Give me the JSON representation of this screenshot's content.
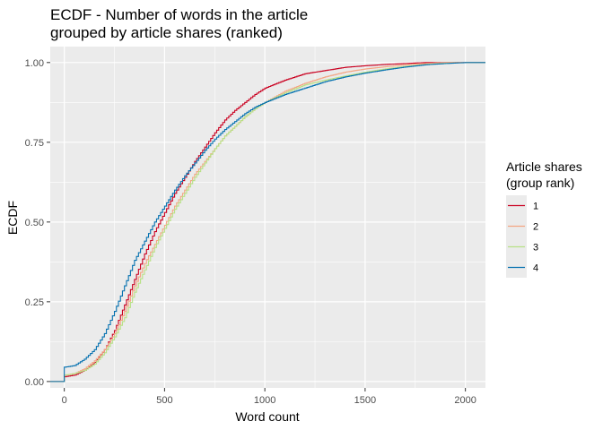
{
  "chart_data": {
    "type": "line",
    "subtype": "ecdf-step",
    "title_lines": [
      "ECDF - Number of words in the article",
      "grouped by article shares (ranked)"
    ],
    "xlabel": "Word count",
    "ylabel": "ECDF",
    "xlim": [
      -70,
      2100
    ],
    "ylim": [
      -0.02,
      1.05
    ],
    "x_ticks": [
      0,
      500,
      1000,
      1500,
      2000
    ],
    "x_tick_labels": [
      "0",
      "500",
      "1000",
      "1500",
      "2000"
    ],
    "y_ticks": [
      0,
      0.25,
      0.5,
      0.75,
      1.0
    ],
    "y_tick_labels": [
      "0.00",
      "0.25",
      "0.50",
      "0.75",
      "1.00"
    ],
    "grid": true,
    "panel_background": "#ebebeb",
    "grid_color": "#ffffff",
    "legend": {
      "title_lines": [
        "Article shares",
        "(group rank)"
      ],
      "position": "right"
    },
    "series": [
      {
        "name": "1",
        "color": "#ca0020",
        "points": [
          [
            -70,
            0
          ],
          [
            0,
            0
          ],
          [
            0,
            0.015
          ],
          [
            50,
            0.02
          ],
          [
            100,
            0.035
          ],
          [
            150,
            0.06
          ],
          [
            200,
            0.1
          ],
          [
            250,
            0.16
          ],
          [
            300,
            0.24
          ],
          [
            350,
            0.32
          ],
          [
            400,
            0.4
          ],
          [
            450,
            0.47
          ],
          [
            500,
            0.53
          ],
          [
            550,
            0.59
          ],
          [
            600,
            0.64
          ],
          [
            650,
            0.69
          ],
          [
            700,
            0.735
          ],
          [
            750,
            0.78
          ],
          [
            800,
            0.82
          ],
          [
            850,
            0.85
          ],
          [
            900,
            0.875
          ],
          [
            950,
            0.9
          ],
          [
            1000,
            0.92
          ],
          [
            1100,
            0.945
          ],
          [
            1200,
            0.965
          ],
          [
            1300,
            0.975
          ],
          [
            1400,
            0.985
          ],
          [
            1500,
            0.99
          ],
          [
            1600,
            0.994
          ],
          [
            1700,
            0.997
          ],
          [
            1800,
            1.0
          ],
          [
            2100,
            1.0
          ]
        ]
      },
      {
        "name": "2",
        "color": "#f4a582",
        "points": [
          [
            -70,
            0
          ],
          [
            0,
            0
          ],
          [
            0,
            0.02
          ],
          [
            50,
            0.025
          ],
          [
            100,
            0.04
          ],
          [
            150,
            0.065
          ],
          [
            200,
            0.1
          ],
          [
            250,
            0.15
          ],
          [
            300,
            0.22
          ],
          [
            350,
            0.3
          ],
          [
            400,
            0.37
          ],
          [
            450,
            0.43
          ],
          [
            500,
            0.49
          ],
          [
            550,
            0.55
          ],
          [
            600,
            0.6
          ],
          [
            650,
            0.65
          ],
          [
            700,
            0.69
          ],
          [
            750,
            0.73
          ],
          [
            800,
            0.77
          ],
          [
            850,
            0.8
          ],
          [
            900,
            0.83
          ],
          [
            950,
            0.855
          ],
          [
            1000,
            0.875
          ],
          [
            1100,
            0.91
          ],
          [
            1200,
            0.935
          ],
          [
            1300,
            0.955
          ],
          [
            1400,
            0.97
          ],
          [
            1500,
            0.98
          ],
          [
            1600,
            0.987
          ],
          [
            1700,
            0.993
          ],
          [
            1800,
            0.997
          ],
          [
            1900,
            1.0
          ],
          [
            2100,
            1.0
          ]
        ]
      },
      {
        "name": "3",
        "color": "#b8e186",
        "points": [
          [
            -70,
            0
          ],
          [
            0,
            0
          ],
          [
            0,
            0.02
          ],
          [
            50,
            0.025
          ],
          [
            100,
            0.035
          ],
          [
            150,
            0.055
          ],
          [
            200,
            0.09
          ],
          [
            250,
            0.14
          ],
          [
            300,
            0.2
          ],
          [
            350,
            0.28
          ],
          [
            400,
            0.35
          ],
          [
            450,
            0.42
          ],
          [
            500,
            0.48
          ],
          [
            550,
            0.54
          ],
          [
            600,
            0.59
          ],
          [
            650,
            0.64
          ],
          [
            700,
            0.685
          ],
          [
            750,
            0.73
          ],
          [
            800,
            0.77
          ],
          [
            850,
            0.8
          ],
          [
            900,
            0.83
          ],
          [
            950,
            0.855
          ],
          [
            1000,
            0.875
          ],
          [
            1100,
            0.905
          ],
          [
            1200,
            0.93
          ],
          [
            1300,
            0.945
          ],
          [
            1400,
            0.958
          ],
          [
            1500,
            0.97
          ],
          [
            1600,
            0.98
          ],
          [
            1700,
            0.988
          ],
          [
            1800,
            0.994
          ],
          [
            1900,
            0.998
          ],
          [
            2000,
            1.0
          ],
          [
            2100,
            1.0
          ]
        ]
      },
      {
        "name": "4",
        "color": "#0571b0",
        "points": [
          [
            -70,
            0
          ],
          [
            0,
            0
          ],
          [
            0,
            0.045
          ],
          [
            50,
            0.05
          ],
          [
            100,
            0.07
          ],
          [
            150,
            0.1
          ],
          [
            200,
            0.15
          ],
          [
            250,
            0.22
          ],
          [
            300,
            0.3
          ],
          [
            350,
            0.38
          ],
          [
            400,
            0.44
          ],
          [
            450,
            0.5
          ],
          [
            500,
            0.55
          ],
          [
            550,
            0.6
          ],
          [
            600,
            0.645
          ],
          [
            650,
            0.685
          ],
          [
            700,
            0.725
          ],
          [
            750,
            0.76
          ],
          [
            800,
            0.79
          ],
          [
            850,
            0.815
          ],
          [
            900,
            0.84
          ],
          [
            950,
            0.86
          ],
          [
            1000,
            0.875
          ],
          [
            1100,
            0.9
          ],
          [
            1200,
            0.92
          ],
          [
            1300,
            0.94
          ],
          [
            1400,
            0.955
          ],
          [
            1500,
            0.967
          ],
          [
            1600,
            0.977
          ],
          [
            1700,
            0.986
          ],
          [
            1800,
            0.993
          ],
          [
            1900,
            0.997
          ],
          [
            2000,
            1.0
          ],
          [
            2100,
            1.0
          ]
        ]
      }
    ]
  }
}
